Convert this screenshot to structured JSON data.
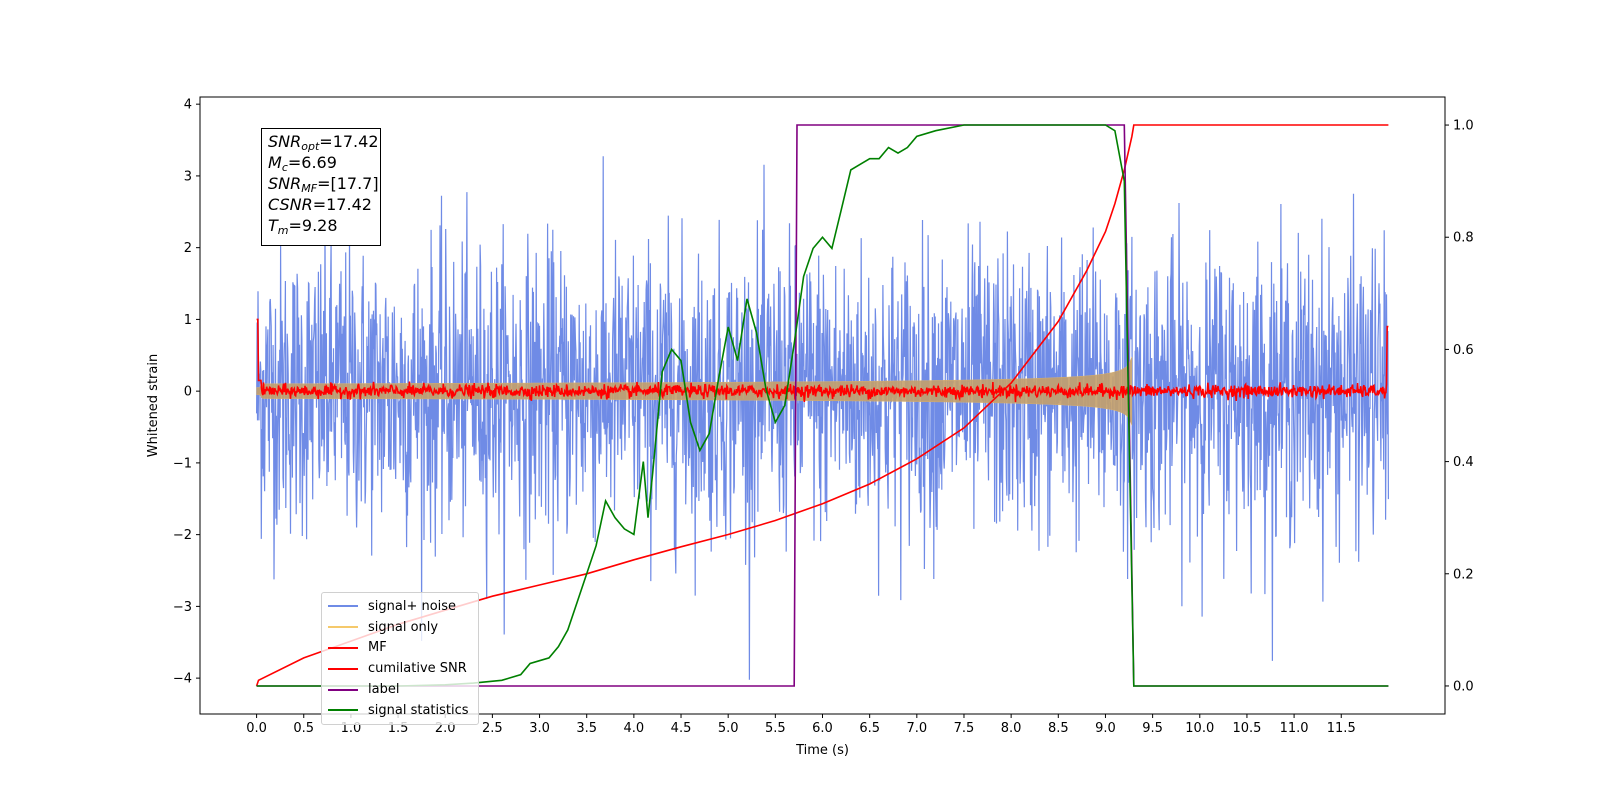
{
  "chart_data": {
    "type": "line",
    "xlabel": "Time (s)",
    "ylabel": "Whitened strain",
    "xlim": [
      -0.6,
      12.6
    ],
    "ylim": [
      -4.5,
      4.1
    ],
    "ylim_right": [
      -0.05,
      1.05
    ],
    "x_ticks": [
      "0.0",
      "0.5",
      "1.0",
      "1.5",
      "2.0",
      "2.5",
      "3.0",
      "3.5",
      "4.0",
      "4.5",
      "5.0",
      "5.5",
      "6.0",
      "6.5",
      "7.0",
      "7.5",
      "8.0",
      "8.5",
      "9.0",
      "9.5",
      "10.0",
      "10.5",
      "11.0",
      "11.5"
    ],
    "y_ticks_left": [
      "4",
      "3",
      "2",
      "1",
      "0",
      "−1",
      "−2",
      "−3",
      "−4"
    ],
    "y_ticks_right": [
      "1.0",
      "0.8",
      "0.6",
      "0.4",
      "0.2",
      "0.0"
    ],
    "legend_position": "lower-left",
    "annotations": [
      {
        "main": "SNR",
        "sub": "opt",
        "value": "=17.42"
      },
      {
        "main": "M",
        "sub": "c",
        "value": "=6.69"
      },
      {
        "main": "SNR",
        "sub": "MF",
        "value": "=[17.7]"
      },
      {
        "main": "CSNR",
        "sub": "",
        "value": "=17.42"
      },
      {
        "main": "T",
        "sub": "m",
        "value": "=9.28"
      }
    ],
    "series": [
      {
        "name": "signal+ noise",
        "color": "#6f8be6",
        "axis": "left",
        "kind": "noise",
        "x_range": [
          0.0,
          12.0
        ],
        "std": 1.0,
        "peak_range": [
          -4.15,
          3.65
        ]
      },
      {
        "name": "signal only",
        "color": "#f5c96b",
        "axis": "left",
        "kind": "chirp",
        "x_range": [
          0.0,
          9.28
        ],
        "envelope_max": 1.0
      },
      {
        "name": "MF",
        "color": "#ff0000",
        "axis": "left",
        "kind": "mf",
        "x_range": [
          0.0,
          12.0
        ],
        "baseline": 0.0,
        "edge_value": 1.0
      },
      {
        "name": "cumilative SNR",
        "color": "#ff0000",
        "axis": "right",
        "x": [
          0.0,
          0.02,
          0.5,
          1.0,
          1.5,
          2.0,
          2.5,
          3.0,
          3.5,
          4.0,
          4.5,
          5.0,
          5.5,
          6.0,
          6.5,
          7.0,
          7.5,
          8.0,
          8.5,
          8.8,
          9.0,
          9.1,
          9.2,
          9.28,
          9.3,
          12.0
        ],
        "y": [
          0.0,
          0.01,
          0.05,
          0.08,
          0.11,
          0.135,
          0.16,
          0.18,
          0.2,
          0.225,
          0.248,
          0.27,
          0.295,
          0.325,
          0.36,
          0.405,
          0.46,
          0.54,
          0.65,
          0.74,
          0.81,
          0.86,
          0.92,
          0.98,
          1.0,
          1.0
        ]
      },
      {
        "name": "label",
        "color": "#800080",
        "axis": "right",
        "x": [
          0.0,
          5.7,
          5.73,
          9.2,
          9.3,
          12.0
        ],
        "y": [
          0.0,
          0.0,
          1.0,
          1.0,
          0.0,
          0.0
        ]
      },
      {
        "name": "signal statistics",
        "color": "#008000",
        "axis": "right",
        "x": [
          0.0,
          0.3,
          0.6,
          1.0,
          1.5,
          2.0,
          2.3,
          2.6,
          2.8,
          2.9,
          3.0,
          3.1,
          3.2,
          3.3,
          3.4,
          3.5,
          3.6,
          3.7,
          3.8,
          3.9,
          4.0,
          4.1,
          4.15,
          4.2,
          4.3,
          4.4,
          4.5,
          4.6,
          4.7,
          4.8,
          4.9,
          5.0,
          5.1,
          5.2,
          5.3,
          5.4,
          5.5,
          5.6,
          5.7,
          5.8,
          5.9,
          6.0,
          6.1,
          6.2,
          6.3,
          6.4,
          6.5,
          6.6,
          6.7,
          6.8,
          6.9,
          7.0,
          7.2,
          7.5,
          8.0,
          8.5,
          9.0,
          9.1,
          9.2,
          9.3,
          10.0,
          11.0,
          12.0
        ],
        "y": [
          0.0,
          0.0,
          0.0,
          0.0,
          0.0,
          0.002,
          0.005,
          0.01,
          0.02,
          0.04,
          0.045,
          0.05,
          0.07,
          0.1,
          0.15,
          0.2,
          0.25,
          0.33,
          0.3,
          0.28,
          0.27,
          0.4,
          0.3,
          0.38,
          0.56,
          0.6,
          0.58,
          0.47,
          0.42,
          0.45,
          0.55,
          0.64,
          0.58,
          0.69,
          0.63,
          0.53,
          0.47,
          0.5,
          0.61,
          0.73,
          0.78,
          0.8,
          0.78,
          0.85,
          0.92,
          0.93,
          0.94,
          0.94,
          0.96,
          0.95,
          0.96,
          0.98,
          0.99,
          1.0,
          1.0,
          1.0,
          1.0,
          0.99,
          0.9,
          0.0,
          0.0,
          0.0,
          0.0
        ]
      }
    ]
  }
}
